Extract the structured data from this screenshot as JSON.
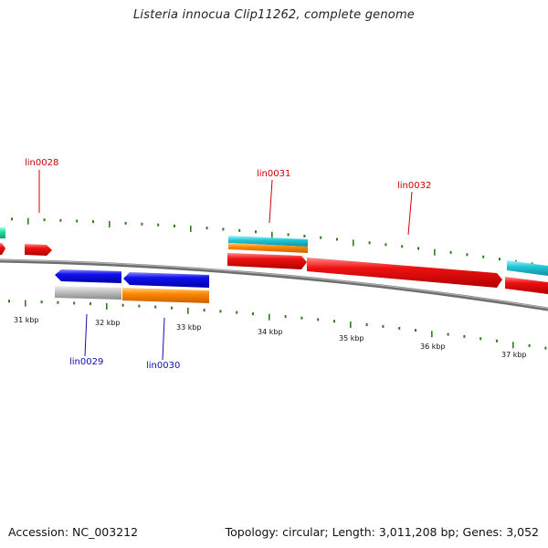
{
  "title": "Listeria innocua Clip11262, complete genome",
  "footer": {
    "accession": "Accession: NC_003212",
    "summary": "Topology: circular; Length: 3,011,208 bp; Genes: 3,052"
  },
  "colors": {
    "forward_label": "#cc0000",
    "reverse_label": "#1010aa",
    "tick": "#2e7d1e",
    "backbone": "#808080",
    "gene_red": "#ee1111",
    "gene_blue": "#1111ee",
    "gene_cyan": "#22c8d8",
    "gene_orange": "#ff8800",
    "gene_gray": "#bfbfbf",
    "gene_teal": "#20e0a8"
  },
  "scale_labels": [
    "31 kbp",
    "32 kbp",
    "33 kbp",
    "34 kbp",
    "35 kbp",
    "36 kbp",
    "37 kbp"
  ],
  "gene_labels": {
    "forward": [
      "lin0028",
      "lin0031",
      "lin0032"
    ],
    "reverse": [
      "lin0029",
      "lin0030"
    ]
  }
}
